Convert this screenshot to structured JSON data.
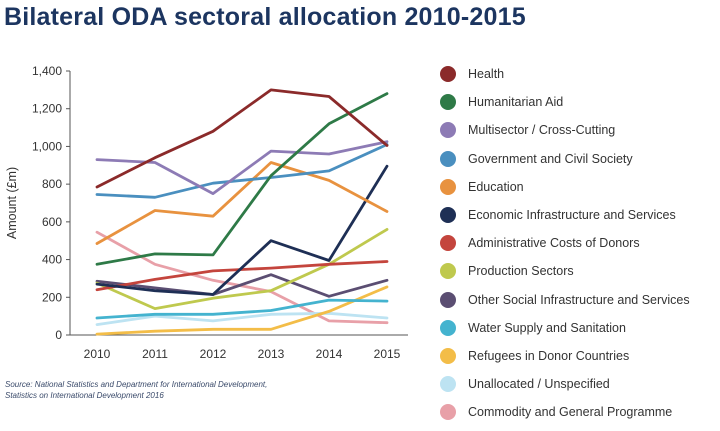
{
  "title": "Bilateral ODA sectoral allocation 2010-2015",
  "source_lines": [
    "Source: National Statistics and Department for International Development,",
    "Statistics on International Development 2016"
  ],
  "chart_data": {
    "type": "line",
    "x": [
      "2010",
      "2011",
      "2012",
      "2013",
      "2014",
      "2015"
    ],
    "ylabel": "Amount (£m)",
    "xlabel": "",
    "ylim": [
      0,
      1400
    ],
    "yticks": [
      0,
      200,
      400,
      600,
      800,
      1000,
      1200,
      1400
    ],
    "ytick_labels": [
      "0",
      "200",
      "400",
      "600",
      "800",
      "1,000",
      "1,200",
      "1,400"
    ],
    "grid": false,
    "legend_position": "right",
    "series": [
      {
        "name": "Health",
        "color": "#8b2a2a",
        "values": [
          785,
          940,
          1080,
          1300,
          1265,
          1005
        ]
      },
      {
        "name": "Humanitarian Aid",
        "color": "#2e7a47",
        "values": [
          375,
          430,
          425,
          845,
          1120,
          1280
        ]
      },
      {
        "name": "Multisector / Cross-Cutting",
        "color": "#8d7bb5",
        "values": [
          930,
          915,
          750,
          975,
          960,
          1025
        ]
      },
      {
        "name": "Government and Civil Society",
        "color": "#4a8fbf",
        "values": [
          745,
          730,
          805,
          835,
          870,
          1010
        ]
      },
      {
        "name": "Education",
        "color": "#e8923f",
        "values": [
          485,
          660,
          630,
          915,
          820,
          655
        ]
      },
      {
        "name": "Economic Infrastructure and Services",
        "color": "#1e2f55",
        "values": [
          270,
          235,
          215,
          500,
          395,
          895
        ]
      },
      {
        "name": "Administrative Costs of Donors",
        "color": "#c4453d",
        "values": [
          240,
          295,
          340,
          355,
          375,
          390
        ]
      },
      {
        "name": "Production Sectors",
        "color": "#bfc94e",
        "values": [
          275,
          140,
          195,
          235,
          375,
          560
        ]
      },
      {
        "name": "Other Social Infrastructure and Services",
        "color": "#5b4e72",
        "values": [
          285,
          250,
          215,
          320,
          205,
          290
        ]
      },
      {
        "name": "Water Supply and Sanitation",
        "color": "#44b3cf",
        "values": [
          90,
          110,
          110,
          130,
          185,
          180
        ]
      },
      {
        "name": "Refugees in Donor Countries",
        "color": "#f3bd48",
        "values": [
          5,
          20,
          30,
          30,
          125,
          255
        ]
      },
      {
        "name": "Unallocated / Unspecified",
        "color": "#bde3f2",
        "values": [
          55,
          100,
          75,
          110,
          115,
          90
        ]
      },
      {
        "name": "Commodity and General Programme",
        "color": "#e8a0a8",
        "values": [
          545,
          375,
          290,
          230,
          75,
          65
        ]
      }
    ]
  }
}
